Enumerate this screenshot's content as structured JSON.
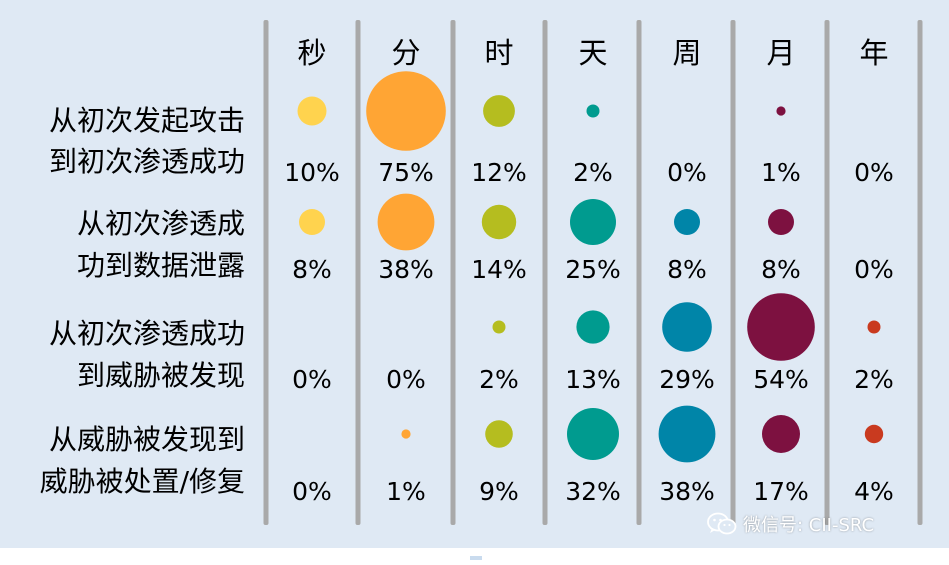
{
  "chart_data": {
    "type": "bubble",
    "columns": [
      "秒",
      "分",
      "时",
      "天",
      "周",
      "月",
      "年"
    ],
    "rows": [
      {
        "label": [
          "从初次发起攻击",
          "到初次渗透成功"
        ],
        "values": [
          10,
          75,
          12,
          2,
          0,
          1,
          0
        ]
      },
      {
        "label": [
          "从初次渗透成",
          "功到数据泄露"
        ],
        "values": [
          8,
          38,
          14,
          25,
          8,
          8,
          0
        ]
      },
      {
        "label": [
          "从初次渗透成功",
          "到威胁被发现"
        ],
        "values": [
          0,
          0,
          2,
          13,
          29,
          54,
          2
        ]
      },
      {
        "label": [
          "从威胁被发现到",
          "威胁被处置/修复"
        ],
        "values": [
          0,
          1,
          9,
          32,
          38,
          17,
          4
        ]
      }
    ],
    "value_unit": "%",
    "column_colors": [
      "#ffd34e",
      "#ffa534",
      "#b5bd1f",
      "#009b8f",
      "#0085a8",
      "#7d1140",
      "#c93a1f"
    ]
  },
  "watermark": {
    "text": "微信号: CII-SRC",
    "icon": "wechat-icon"
  }
}
